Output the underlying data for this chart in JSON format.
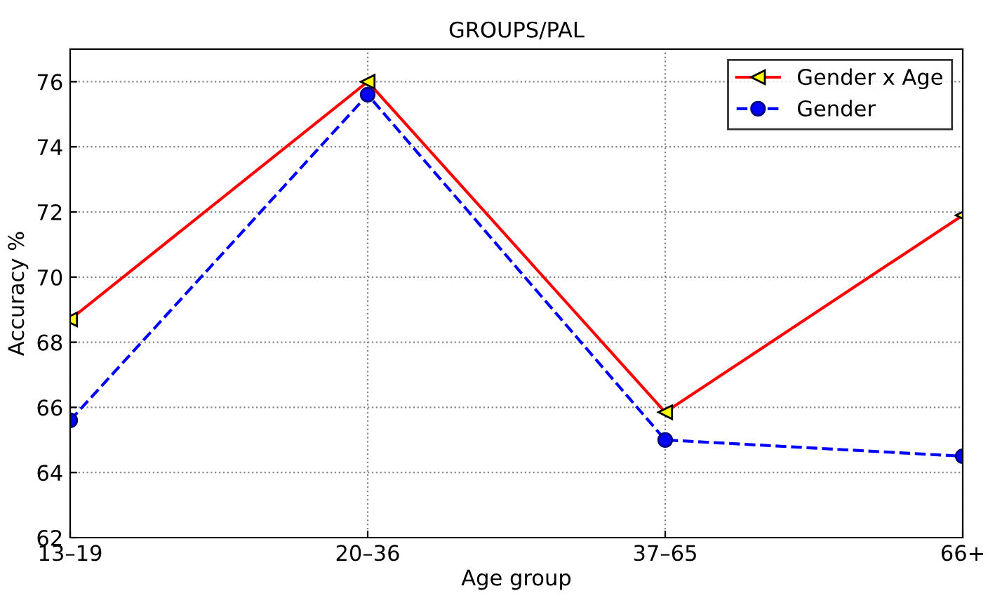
{
  "chart_data": {
    "type": "line",
    "title": "GROUPS/PAL",
    "xlabel": "Age group",
    "ylabel": "Accuracy %",
    "categories": [
      "13–19",
      "20–36",
      "37–65",
      "66+"
    ],
    "series": [
      {
        "name": "Gender x Age",
        "color": "#ff0000",
        "values": [
          68.7,
          76.0,
          65.85,
          71.9
        ],
        "marker": "triangle",
        "line_style": "solid"
      },
      {
        "name": "Gender",
        "color": "#0000ff",
        "values": [
          65.6,
          75.6,
          65.0,
          64.5
        ],
        "marker": "circle",
        "line_style": "dashed"
      }
    ],
    "ylim": [
      62,
      77
    ],
    "yticks": [
      62,
      64,
      66,
      68,
      70,
      72,
      74,
      76
    ],
    "grid": true,
    "legend": "top right"
  }
}
